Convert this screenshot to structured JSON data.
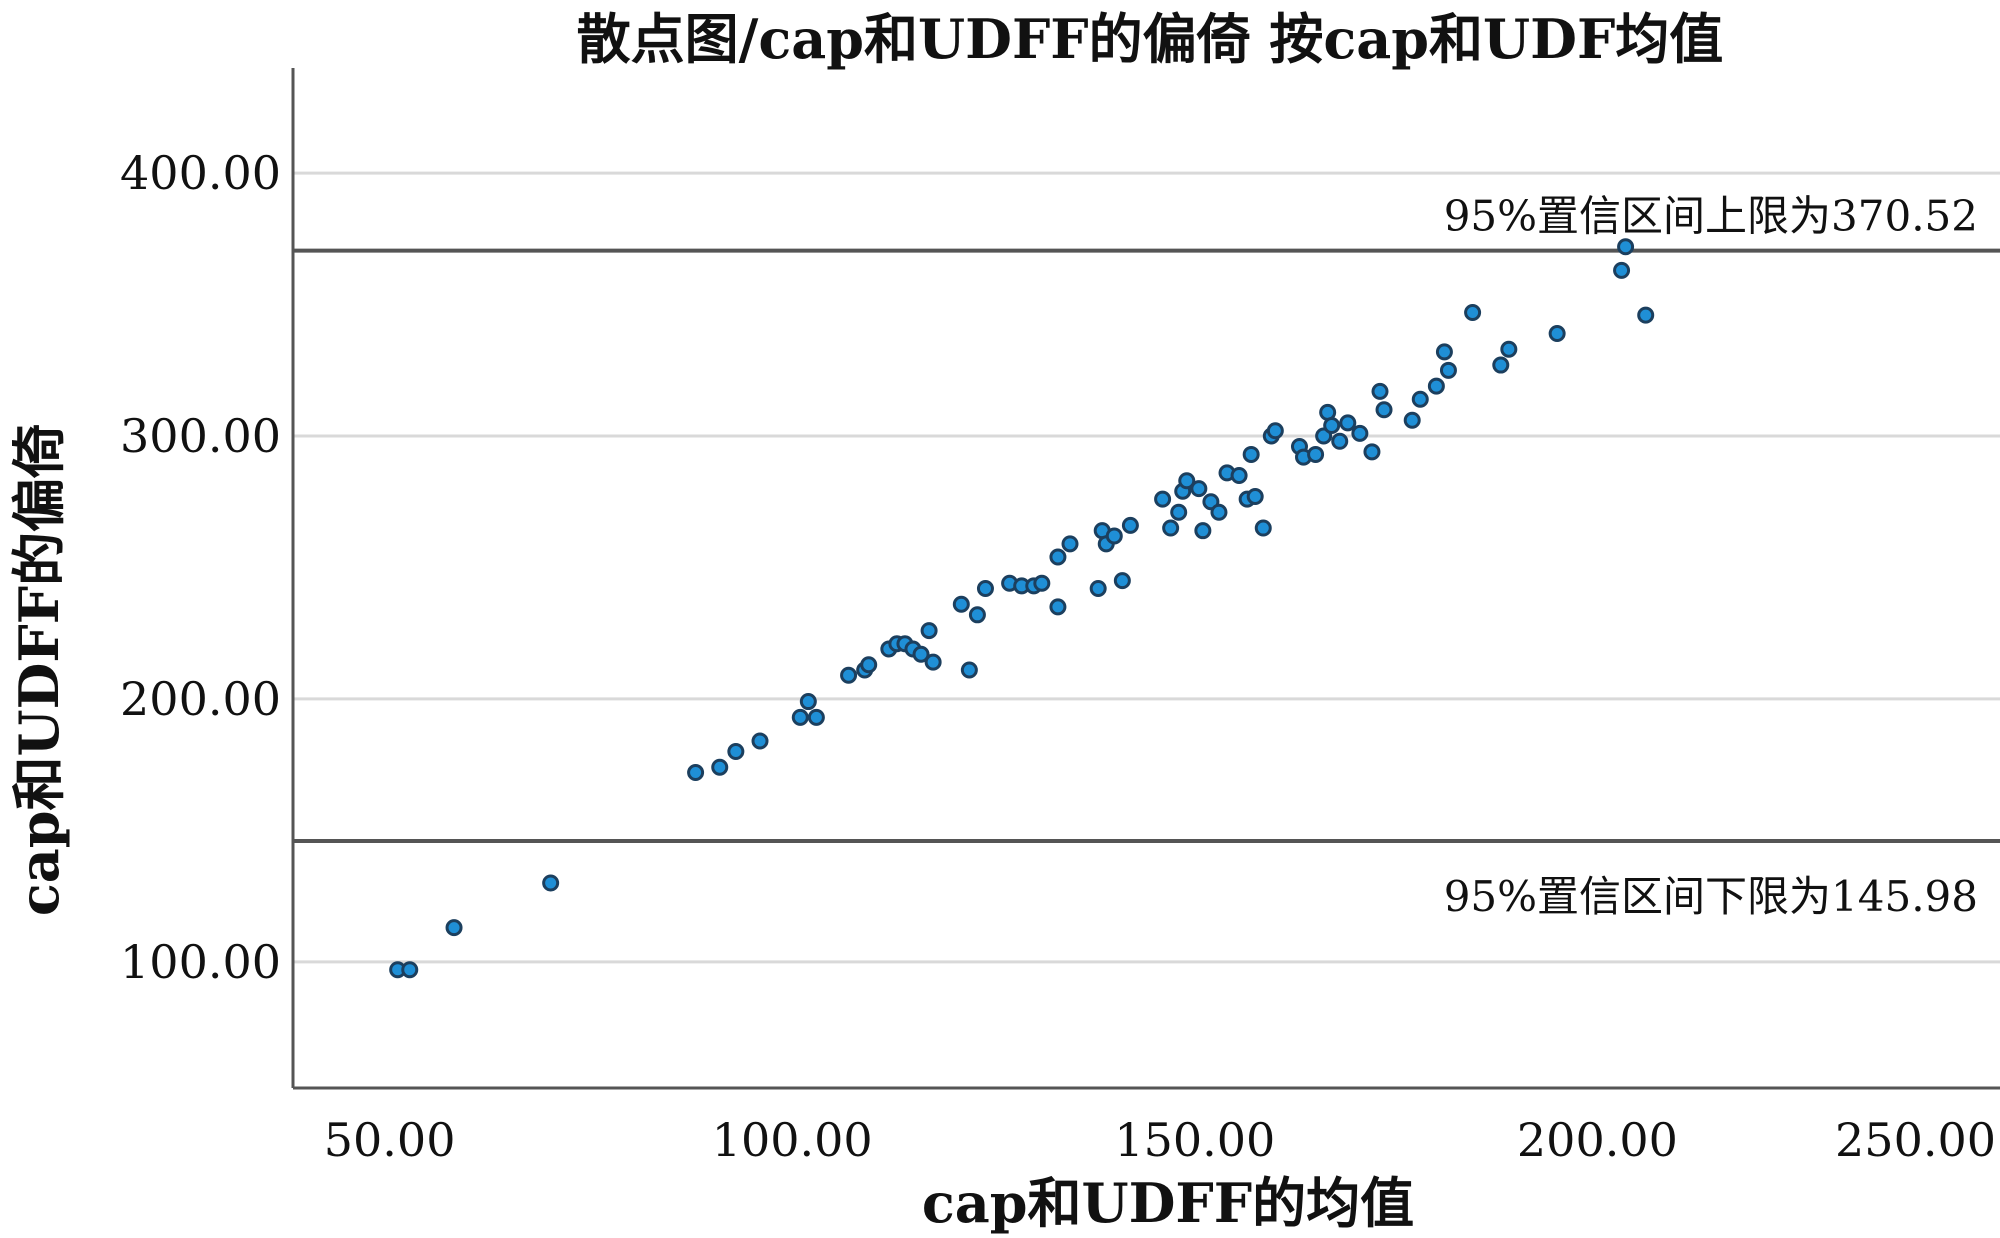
{
  "chart_data": {
    "type": "scatter",
    "title": "散点图/cap和UDFF的偏倚  按cap和UDF均值",
    "xlabel": "cap和UDFF的均值",
    "ylabel": "cap和UDFF的偏倚",
    "xlim": [
      38,
      250
    ],
    "ylim": [
      52,
      440
    ],
    "x_ticks": [
      50,
      100,
      150,
      200,
      250
    ],
    "x_tick_labels": [
      "50.00",
      "100.00",
      "150.00",
      "200.00",
      "250.00"
    ],
    "y_ticks": [
      100,
      200,
      300,
      400
    ],
    "y_tick_labels": [
      "100.00",
      "200.00",
      "300.00",
      "400.00"
    ],
    "grid": "horizontal",
    "reference_lines": [
      {
        "y": 370.52,
        "label": "95%置信区间上限为370.52"
      },
      {
        "y": 145.98,
        "label": "95%置信区间下限为145.98"
      }
    ],
    "points": [
      [
        51,
        97
      ],
      [
        52.5,
        97
      ],
      [
        58,
        113
      ],
      [
        70,
        130
      ],
      [
        88,
        172
      ],
      [
        91,
        174
      ],
      [
        93,
        180
      ],
      [
        96,
        184
      ],
      [
        101,
        193
      ],
      [
        102,
        199
      ],
      [
        103,
        193
      ],
      [
        107,
        209
      ],
      [
        109,
        211
      ],
      [
        109.5,
        213
      ],
      [
        112,
        219
      ],
      [
        113,
        221
      ],
      [
        114,
        221
      ],
      [
        115,
        219
      ],
      [
        116,
        217
      ],
      [
        117,
        226
      ],
      [
        117.5,
        214
      ],
      [
        121,
        236
      ],
      [
        122,
        211
      ],
      [
        123,
        232
      ],
      [
        124,
        242
      ],
      [
        127,
        244
      ],
      [
        128.5,
        243
      ],
      [
        130,
        243
      ],
      [
        131,
        244
      ],
      [
        133,
        235
      ],
      [
        133,
        254
      ],
      [
        134.5,
        259
      ],
      [
        138,
        242
      ],
      [
        138.5,
        264
      ],
      [
        139,
        259
      ],
      [
        140,
        262
      ],
      [
        141,
        245
      ],
      [
        142,
        266
      ],
      [
        146,
        276
      ],
      [
        147,
        265
      ],
      [
        148,
        271
      ],
      [
        148.5,
        279
      ],
      [
        149,
        283
      ],
      [
        150.5,
        280
      ],
      [
        151,
        264
      ],
      [
        152,
        275
      ],
      [
        153,
        271
      ],
      [
        154,
        286
      ],
      [
        155.5,
        285
      ],
      [
        156.5,
        276
      ],
      [
        157,
        293
      ],
      [
        157.5,
        277
      ],
      [
        158.5,
        265
      ],
      [
        159.5,
        300
      ],
      [
        160,
        302
      ],
      [
        163,
        296
      ],
      [
        163.5,
        292
      ],
      [
        165,
        293
      ],
      [
        166,
        300
      ],
      [
        166.5,
        309
      ],
      [
        167,
        304
      ],
      [
        168,
        298
      ],
      [
        169,
        305
      ],
      [
        170.5,
        301
      ],
      [
        172,
        294
      ],
      [
        173,
        317
      ],
      [
        173.5,
        310
      ],
      [
        177,
        306
      ],
      [
        178,
        314
      ],
      [
        180,
        319
      ],
      [
        181,
        332
      ],
      [
        181.5,
        325
      ],
      [
        184.5,
        347
      ],
      [
        188,
        327
      ],
      [
        189,
        333
      ],
      [
        195,
        339
      ],
      [
        203,
        363
      ],
      [
        203.5,
        372
      ],
      [
        206,
        346
      ]
    ]
  }
}
